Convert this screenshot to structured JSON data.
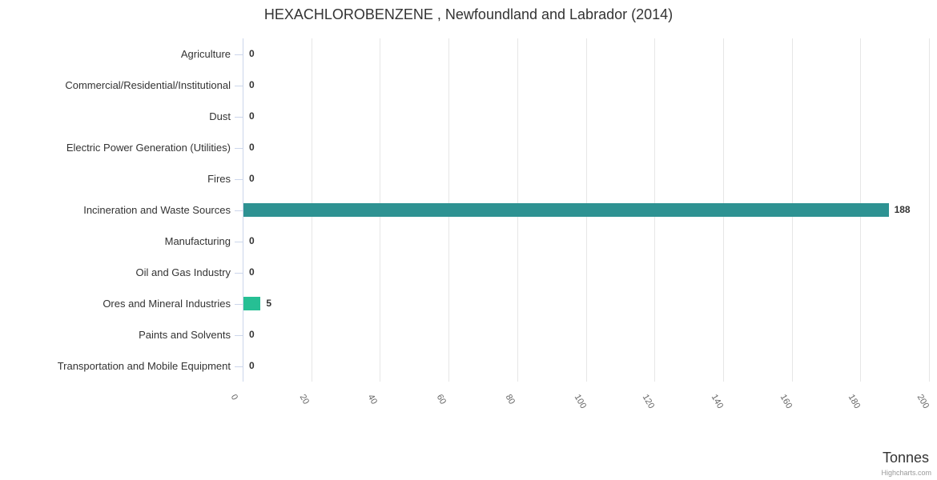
{
  "credits": "Highcharts.com",
  "colors": {
    "bar_default": "#2e9292",
    "bar_highlight": "#26bf94",
    "gridline": "#e6e6e6",
    "axis_line": "#ccd6eb",
    "category_label": "#333333",
    "data_label": "#333333",
    "x_tick_label": "#666666",
    "title": "#333333",
    "credits": "#999999",
    "background": "#ffffff"
  },
  "chart_data": {
    "type": "bar",
    "orientation": "horizontal",
    "title": "HEXACHLOROBENZENE , Newfoundland and Labrador (2014)",
    "categories": [
      "Agriculture",
      "Commercial/Residential/Institutional",
      "Dust",
      "Electric Power Generation (Utilities)",
      "Fires",
      "Incineration and Waste Sources",
      "Manufacturing",
      "Oil and Gas Industry",
      "Ores and Mineral Industries",
      "Paints and Solvents",
      "Transportation and Mobile Equipment"
    ],
    "values": [
      0,
      0,
      0,
      0,
      0,
      188,
      0,
      0,
      5,
      0,
      0
    ],
    "bar_colors": [
      null,
      null,
      null,
      null,
      null,
      "#2e9292",
      null,
      null,
      "#26bf94",
      null,
      null
    ],
    "data_labels": [
      "0",
      "0",
      "0",
      "0",
      "0",
      "188",
      "0",
      "0",
      "5",
      "0",
      "0"
    ],
    "xlabel": "Tonnes",
    "ylabel": "",
    "xlim": [
      0,
      200
    ],
    "x_ticks": [
      0,
      20,
      40,
      60,
      80,
      100,
      120,
      140,
      160,
      180,
      200
    ],
    "grid": true,
    "legend": false,
    "credits": "Highcharts.com"
  }
}
